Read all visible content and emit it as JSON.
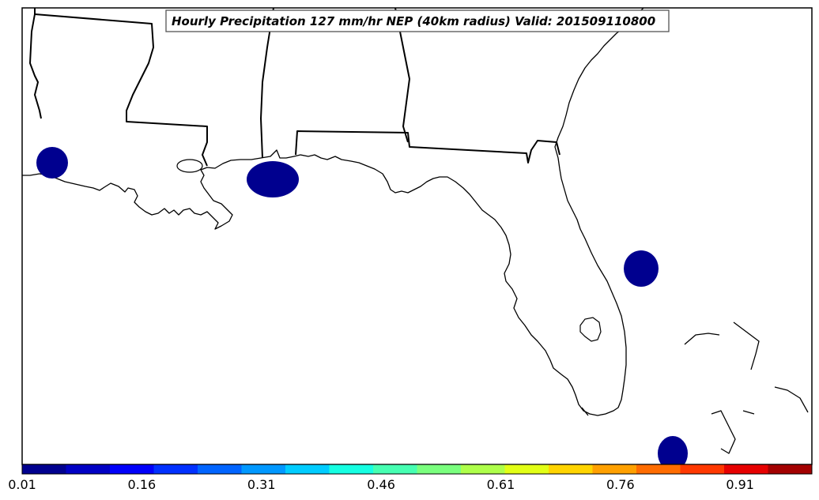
{
  "map": {
    "title": "Hourly Precipitation 127 mm/hr NEP (40km radius) Valid: 201509110800"
  },
  "colorbar": {
    "min": 0.01,
    "max": 1.0,
    "tick_labels": [
      "0.01",
      "0.16",
      "0.31",
      "0.46",
      "0.61",
      "0.76",
      "0.91"
    ],
    "colors": [
      "#00008f",
      "#0000c4",
      "#0000fa",
      "#0030ff",
      "#0064ff",
      "#0098ff",
      "#00ccff",
      "#16ffe2",
      "#46ffb2",
      "#7aff7e",
      "#aeff4a",
      "#e2ff16",
      "#ffd400",
      "#ffa000",
      "#ff6c00",
      "#ff3800",
      "#e60000",
      "#a30000"
    ]
  }
}
